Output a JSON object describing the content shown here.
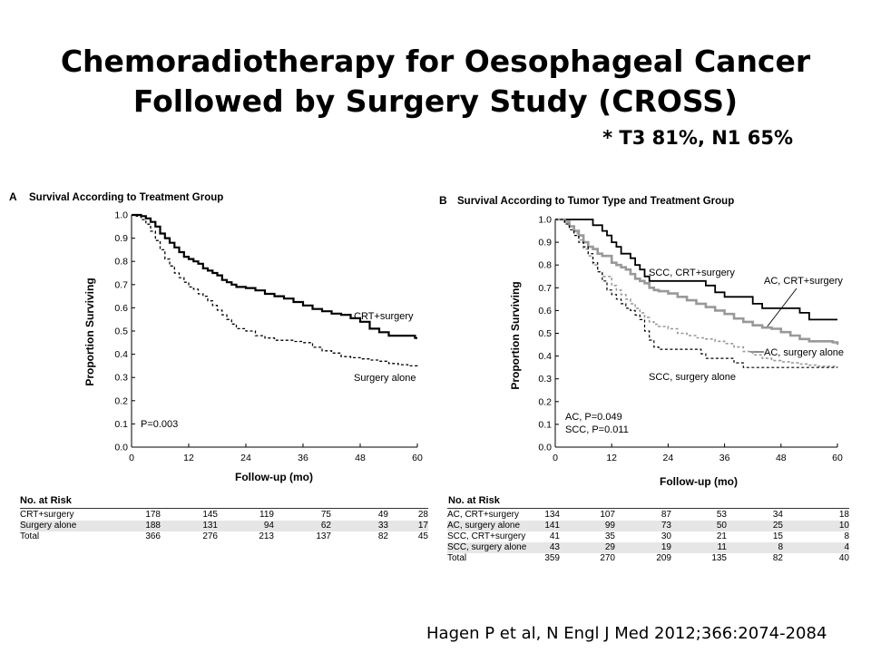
{
  "slide": {
    "title_line1": "Chemoradiotherapy for Oesophageal Cancer",
    "title_line2": "Followed by Surgery Study (CROSS)",
    "subtitle": "* T3 81%, N1 65%",
    "citation": "Hagen P et al, N Engl J Med 2012;366:2074-2084"
  },
  "colors": {
    "black": "#000000",
    "gray": "#999999",
    "band": "#e6e6e6"
  },
  "chart_data": [
    {
      "type": "line",
      "panel_letter": "A",
      "title": "Survival According to Treatment Group",
      "xlabel": "Follow-up (mo)",
      "ylabel": "Proportion Surviving",
      "xlim": [
        0,
        60
      ],
      "ylim": [
        0,
        1
      ],
      "xticks": [
        "0",
        "12",
        "24",
        "36",
        "48",
        "60"
      ],
      "yticks": [
        "0.0",
        "0.1",
        "0.2",
        "0.3",
        "0.4",
        "0.5",
        "0.6",
        "0.7",
        "0.8",
        "0.9",
        "1.0"
      ],
      "annotations": [
        "P=0.003"
      ],
      "grid": false,
      "series": [
        {
          "name": "CRT+surgery",
          "color": "#000000",
          "style": "solid",
          "width": 2.2,
          "points": [
            [
              0,
              1.0
            ],
            [
              1,
              1.0
            ],
            [
              2,
              0.995
            ],
            [
              3,
              0.985
            ],
            [
              4,
              0.97
            ],
            [
              5,
              0.95
            ],
            [
              6,
              0.92
            ],
            [
              7,
              0.9
            ],
            [
              8,
              0.88
            ],
            [
              9,
              0.86
            ],
            [
              10,
              0.84
            ],
            [
              11,
              0.82
            ],
            [
              12,
              0.81
            ],
            [
              13,
              0.8
            ],
            [
              14,
              0.79
            ],
            [
              15,
              0.77
            ],
            [
              16,
              0.76
            ],
            [
              17,
              0.75
            ],
            [
              18,
              0.74
            ],
            [
              19,
              0.72
            ],
            [
              20,
              0.71
            ],
            [
              21,
              0.7
            ],
            [
              22,
              0.69
            ],
            [
              24,
              0.685
            ],
            [
              26,
              0.675
            ],
            [
              28,
              0.66
            ],
            [
              30,
              0.65
            ],
            [
              32,
              0.64
            ],
            [
              34,
              0.625
            ],
            [
              36,
              0.61
            ],
            [
              38,
              0.595
            ],
            [
              40,
              0.585
            ],
            [
              42,
              0.575
            ],
            [
              44,
              0.57
            ],
            [
              46,
              0.555
            ],
            [
              48,
              0.54
            ],
            [
              50,
              0.51
            ],
            [
              52,
              0.495
            ],
            [
              54,
              0.48
            ],
            [
              56,
              0.48
            ],
            [
              58,
              0.48
            ],
            [
              59,
              0.48
            ],
            [
              59.5,
              0.47
            ],
            [
              60,
              0.47
            ]
          ]
        },
        {
          "name": "Surgery alone",
          "color": "#000000",
          "style": "dashed",
          "width": 1.3,
          "points": [
            [
              0,
              1.0
            ],
            [
              1,
              0.995
            ],
            [
              2,
              0.98
            ],
            [
              3,
              0.96
            ],
            [
              4,
              0.93
            ],
            [
              5,
              0.89
            ],
            [
              6,
              0.85
            ],
            [
              7,
              0.81
            ],
            [
              8,
              0.78
            ],
            [
              9,
              0.75
            ],
            [
              10,
              0.73
            ],
            [
              11,
              0.71
            ],
            [
              12,
              0.69
            ],
            [
              13,
              0.68
            ],
            [
              14,
              0.66
            ],
            [
              15,
              0.65
            ],
            [
              16,
              0.63
            ],
            [
              17,
              0.61
            ],
            [
              18,
              0.59
            ],
            [
              19,
              0.57
            ],
            [
              20,
              0.55
            ],
            [
              21,
              0.53
            ],
            [
              22,
              0.51
            ],
            [
              24,
              0.5
            ],
            [
              26,
              0.48
            ],
            [
              28,
              0.47
            ],
            [
              30,
              0.46
            ],
            [
              32,
              0.46
            ],
            [
              34,
              0.455
            ],
            [
              36,
              0.45
            ],
            [
              38,
              0.43
            ],
            [
              40,
              0.415
            ],
            [
              42,
              0.405
            ],
            [
              44,
              0.39
            ],
            [
              46,
              0.385
            ],
            [
              48,
              0.38
            ],
            [
              50,
              0.375
            ],
            [
              52,
              0.37
            ],
            [
              54,
              0.36
            ],
            [
              56,
              0.355
            ],
            [
              58,
              0.35
            ],
            [
              59,
              0.35
            ],
            [
              60,
              0.34
            ]
          ]
        }
      ],
      "series_labels": [
        "CRT+surgery",
        "Surgery alone"
      ],
      "risk_table": {
        "header": "No. at Risk",
        "rows": [
          {
            "label": "CRT+surgery",
            "values": [
              "178",
              "145",
              "119",
              "75",
              "49",
              "28"
            ]
          },
          {
            "label": "Surgery alone",
            "values": [
              "188",
              "131",
              "94",
              "62",
              "33",
              "17"
            ]
          },
          {
            "label": "Total",
            "values": [
              "366",
              "276",
              "213",
              "137",
              "82",
              "45"
            ]
          }
        ]
      }
    },
    {
      "type": "line",
      "panel_letter": "B",
      "title": "Survival According to Tumor Type and Treatment Group",
      "xlabel": "Follow-up (mo)",
      "ylabel": "Proportion Surviving",
      "xlim": [
        0,
        60
      ],
      "ylim": [
        0,
        1
      ],
      "xticks": [
        "0",
        "12",
        "24",
        "36",
        "48",
        "60"
      ],
      "yticks": [
        "0.0",
        "0.1",
        "0.2",
        "0.3",
        "0.4",
        "0.5",
        "0.6",
        "0.7",
        "0.8",
        "0.9",
        "1.0"
      ],
      "annotations": [
        "AC, P=0.049",
        "SCC, P=0.011"
      ],
      "grid": false,
      "series": [
        {
          "name": "SCC, CRT+surgery",
          "color": "#000000",
          "style": "solid",
          "width": 1.8,
          "points": [
            [
              0,
              1.0
            ],
            [
              6,
              1.0
            ],
            [
              8,
              0.975
            ],
            [
              10,
              0.95
            ],
            [
              11,
              0.93
            ],
            [
              12,
              0.9
            ],
            [
              13,
              0.88
            ],
            [
              14,
              0.85
            ],
            [
              16,
              0.83
            ],
            [
              17,
              0.8
            ],
            [
              18,
              0.78
            ],
            [
              19,
              0.75
            ],
            [
              20,
              0.73
            ],
            [
              30,
              0.73
            ],
            [
              32,
              0.71
            ],
            [
              34,
              0.68
            ],
            [
              36,
              0.66
            ],
            [
              40,
              0.66
            ],
            [
              42,
              0.63
            ],
            [
              44,
              0.61
            ],
            [
              50,
              0.61
            ],
            [
              52,
              0.59
            ],
            [
              54,
              0.56
            ],
            [
              60,
              0.56
            ]
          ]
        },
        {
          "name": "AC, CRT+surgery",
          "color": "#999999",
          "style": "solid",
          "width": 2.6,
          "points": [
            [
              0,
              1.0
            ],
            [
              2,
              0.99
            ],
            [
              3,
              0.97
            ],
            [
              4,
              0.95
            ],
            [
              5,
              0.93
            ],
            [
              6,
              0.9
            ],
            [
              7,
              0.88
            ],
            [
              8,
              0.87
            ],
            [
              9,
              0.85
            ],
            [
              10,
              0.84
            ],
            [
              12,
              0.81
            ],
            [
              13,
              0.8
            ],
            [
              14,
              0.79
            ],
            [
              15,
              0.78
            ],
            [
              16,
              0.76
            ],
            [
              17,
              0.74
            ],
            [
              18,
              0.73
            ],
            [
              19,
              0.72
            ],
            [
              20,
              0.7
            ],
            [
              21,
              0.69
            ],
            [
              22,
              0.685
            ],
            [
              24,
              0.675
            ],
            [
              26,
              0.66
            ],
            [
              28,
              0.645
            ],
            [
              30,
              0.63
            ],
            [
              32,
              0.615
            ],
            [
              34,
              0.6
            ],
            [
              36,
              0.585
            ],
            [
              38,
              0.565
            ],
            [
              40,
              0.55
            ],
            [
              42,
              0.535
            ],
            [
              44,
              0.525
            ],
            [
              46,
              0.52
            ],
            [
              48,
              0.505
            ],
            [
              50,
              0.49
            ],
            [
              52,
              0.475
            ],
            [
              54,
              0.465
            ],
            [
              56,
              0.465
            ],
            [
              58,
              0.465
            ],
            [
              59,
              0.46
            ],
            [
              60,
              0.45
            ]
          ]
        },
        {
          "name": "AC, surgery alone",
          "color": "#999999",
          "style": "dashed",
          "width": 1.6,
          "points": [
            [
              0,
              1.0
            ],
            [
              2,
              0.99
            ],
            [
              3,
              0.97
            ],
            [
              4,
              0.94
            ],
            [
              5,
              0.91
            ],
            [
              6,
              0.87
            ],
            [
              7,
              0.84
            ],
            [
              8,
              0.8
            ],
            [
              9,
              0.77
            ],
            [
              10,
              0.75
            ],
            [
              12,
              0.71
            ],
            [
              13,
              0.69
            ],
            [
              14,
              0.67
            ],
            [
              15,
              0.65
            ],
            [
              16,
              0.63
            ],
            [
              17,
              0.61
            ],
            [
              18,
              0.59
            ],
            [
              19,
              0.57
            ],
            [
              20,
              0.55
            ],
            [
              21,
              0.54
            ],
            [
              22,
              0.53
            ],
            [
              24,
              0.52
            ],
            [
              26,
              0.5
            ],
            [
              28,
              0.49
            ],
            [
              30,
              0.48
            ],
            [
              32,
              0.475
            ],
            [
              34,
              0.465
            ],
            [
              36,
              0.455
            ],
            [
              38,
              0.44
            ],
            [
              40,
              0.42
            ],
            [
              42,
              0.405
            ],
            [
              44,
              0.39
            ],
            [
              46,
              0.38
            ],
            [
              48,
              0.375
            ],
            [
              50,
              0.37
            ],
            [
              52,
              0.365
            ],
            [
              54,
              0.36
            ],
            [
              56,
              0.355
            ],
            [
              58,
              0.355
            ],
            [
              60,
              0.35
            ]
          ]
        },
        {
          "name": "SCC, surgery alone",
          "color": "#000000",
          "style": "dashed",
          "width": 1.2,
          "points": [
            [
              0,
              1.0
            ],
            [
              2,
              0.98
            ],
            [
              3,
              0.955
            ],
            [
              4,
              0.93
            ],
            [
              5,
              0.9
            ],
            [
              6,
              0.88
            ],
            [
              7,
              0.85
            ],
            [
              8,
              0.81
            ],
            [
              9,
              0.77
            ],
            [
              10,
              0.73
            ],
            [
              11,
              0.69
            ],
            [
              12,
              0.67
            ],
            [
              13,
              0.65
            ],
            [
              14,
              0.63
            ],
            [
              15,
              0.61
            ],
            [
              16,
              0.6
            ],
            [
              17,
              0.58
            ],
            [
              18,
              0.56
            ],
            [
              19,
              0.51
            ],
            [
              20,
              0.47
            ],
            [
              21,
              0.44
            ],
            [
              22,
              0.43
            ],
            [
              30,
              0.43
            ],
            [
              31,
              0.41
            ],
            [
              32,
              0.39
            ],
            [
              36,
              0.39
            ],
            [
              38,
              0.37
            ],
            [
              40,
              0.35
            ],
            [
              60,
              0.35
            ]
          ]
        }
      ],
      "series_labels": [
        "SCC, CRT+surgery",
        "AC, CRT+surgery",
        "AC, surgery alone",
        "SCC, surgery alone"
      ],
      "risk_table": {
        "header": "No. at Risk",
        "rows": [
          {
            "label": "AC, CRT+surgery",
            "values": [
              "134",
              "107",
              "87",
              "53",
              "34",
              "18"
            ]
          },
          {
            "label": "AC, surgery alone",
            "values": [
              "141",
              "99",
              "73",
              "50",
              "25",
              "10"
            ]
          },
          {
            "label": "SCC, CRT+surgery",
            "values": [
              "41",
              "35",
              "30",
              "21",
              "15",
              "8"
            ]
          },
          {
            "label": "SCC, surgery alone",
            "values": [
              "43",
              "29",
              "19",
              "11",
              "8",
              "4"
            ]
          },
          {
            "label": "Total",
            "values": [
              "359",
              "270",
              "209",
              "135",
              "82",
              "40"
            ]
          }
        ]
      }
    }
  ]
}
